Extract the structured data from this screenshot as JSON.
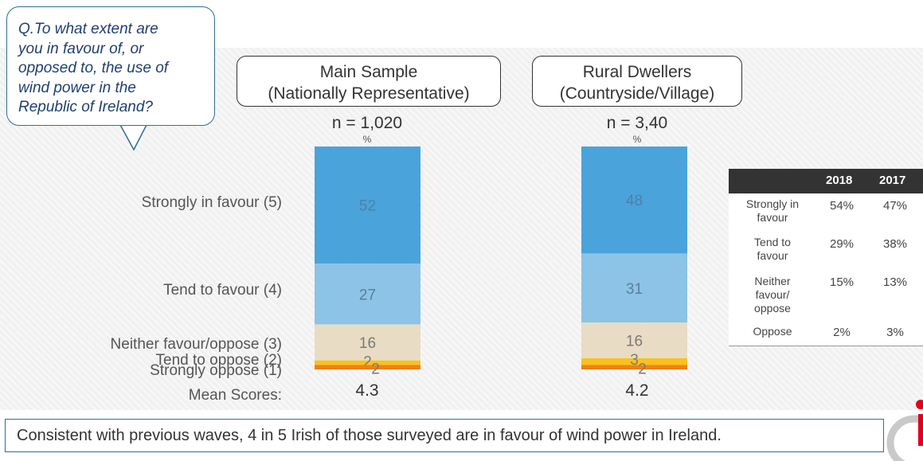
{
  "question": {
    "lines": [
      "Q.To what extent are",
      "you in favour of, or",
      "opposed to, the use of",
      "wind power in the",
      "Republic of Ireland?"
    ]
  },
  "chart_data": {
    "type": "bar",
    "stacked": true,
    "categories": [
      "Strongly in favour (5)",
      "Tend to favour (4)",
      "Neither favour/oppose (3)",
      "Tend to oppose (2)",
      "Strongly oppose (1)"
    ],
    "unit_label": "%",
    "mean_label": "Mean Scores:",
    "colors": [
      "#4aa3da",
      "#8cc3e6",
      "#e8dcc4",
      "#f9c21a",
      "#f07f1a"
    ],
    "series": [
      {
        "name": "Main Sample (Nationally Representative)",
        "title_lines": [
          "Main Sample",
          "(Nationally Representative)"
        ],
        "n": "n = 1,020",
        "values": [
          52,
          27,
          16,
          2,
          2
        ],
        "mean": "4.3"
      },
      {
        "name": "Rural Dwellers (Countryside/Village)",
        "title_lines": [
          "Rural Dwellers",
          "(Countryside/Village)"
        ],
        "n": "n = 3,40",
        "values": [
          48,
          31,
          16,
          3,
          2
        ],
        "mean": "4.2"
      }
    ]
  },
  "comparison_table": {
    "columns": [
      "2018",
      "2017"
    ],
    "rows": [
      {
        "label_lines": [
          "Strongly in",
          "favour"
        ],
        "values": [
          "54%",
          "47%"
        ]
      },
      {
        "label_lines": [
          "Tend to",
          "favour"
        ],
        "values": [
          "29%",
          "38%"
        ]
      },
      {
        "label_lines": [
          "Neither",
          "favour/",
          "oppose"
        ],
        "values": [
          "15%",
          "13%"
        ]
      },
      {
        "label_lines": [
          "Oppose"
        ],
        "values": [
          "2%",
          "3%"
        ]
      }
    ]
  },
  "footer": {
    "text": "Consistent with previous waves, 4 in 5 Irish of those surveyed are in favour of wind power in Ireland."
  }
}
